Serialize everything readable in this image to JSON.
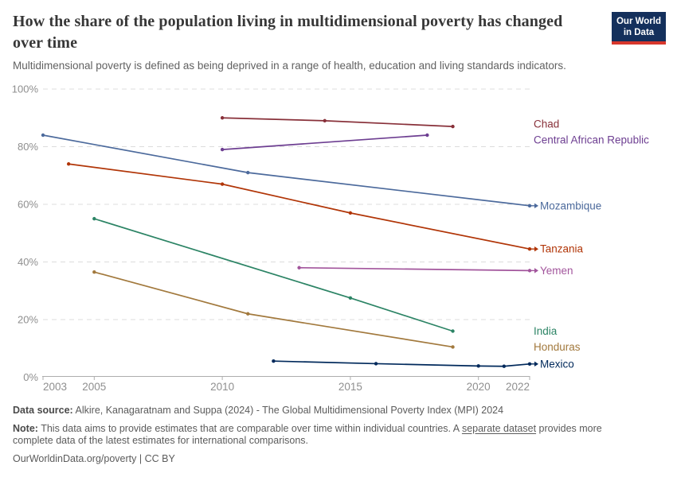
{
  "header": {
    "title": "How the share of the population living in multidimensional poverty has changed over time",
    "subtitle": "Multidimensional poverty is defined as being deprived in a range of health, education and living standards indicators.",
    "logo": {
      "line1": "Our World",
      "line2": "in Data"
    }
  },
  "chart_data": {
    "type": "line",
    "title": "How the share of the population living in multidimensional poverty has changed over time",
    "xlabel": "",
    "ylabel": "",
    "x_range": [
      2003,
      2022
    ],
    "y_range": [
      0,
      100
    ],
    "x_ticks": [
      2003,
      2005,
      2010,
      2015,
      2020,
      2022
    ],
    "y_ticks": [
      0,
      20,
      40,
      60,
      80,
      100
    ],
    "y_tick_suffix": "%",
    "grid": true,
    "legend_position": "right-of-line-ends",
    "series": [
      {
        "name": "Chad",
        "color": "#883039",
        "arrow": false,
        "label_dy": -3,
        "points": [
          [
            2010,
            90
          ],
          [
            2014,
            89
          ],
          [
            2019,
            87
          ]
        ]
      },
      {
        "name": "Central African Republic",
        "color": "#6D3E91",
        "arrow": false,
        "label_dy": 6,
        "points": [
          [
            2010,
            79
          ],
          [
            2018,
            84
          ]
        ]
      },
      {
        "name": "Mozambique",
        "color": "#4C6A9C",
        "arrow": true,
        "label_dy": 0,
        "points": [
          [
            2003,
            84
          ],
          [
            2011,
            71
          ],
          [
            2022,
            59.5
          ]
        ]
      },
      {
        "name": "Tanzania",
        "color": "#B13507",
        "arrow": true,
        "label_dy": 0,
        "points": [
          [
            2004,
            74
          ],
          [
            2010,
            67
          ],
          [
            2015,
            57
          ],
          [
            2022,
            44.5
          ]
        ]
      },
      {
        "name": "Yemen",
        "color": "#A2559C",
        "arrow": true,
        "label_dy": 0,
        "points": [
          [
            2013,
            38
          ],
          [
            2022,
            37
          ]
        ]
      },
      {
        "name": "India",
        "color": "#2C8465",
        "arrow": false,
        "label_dy": 0,
        "points": [
          [
            2005,
            55
          ],
          [
            2015,
            27.5
          ],
          [
            2019,
            16
          ]
        ]
      },
      {
        "name": "Honduras",
        "color": "#A2793D",
        "arrow": false,
        "label_dy": 0,
        "points": [
          [
            2005,
            36.5
          ],
          [
            2011,
            22
          ],
          [
            2019,
            10.5
          ]
        ]
      },
      {
        "name": "Mexico",
        "color": "#00295B",
        "arrow": true,
        "label_dy": 0,
        "points": [
          [
            2012,
            5.6
          ],
          [
            2016,
            4.7
          ],
          [
            2020,
            3.9
          ],
          [
            2021,
            3.8
          ],
          [
            2022,
            4.6
          ]
        ]
      }
    ]
  },
  "footer": {
    "datasource_label": "Data source:",
    "datasource_text": " Alkire, Kanagaratnam and Suppa (2024) - The Global Multidimensional Poverty Index (MPI) 2024",
    "note_label": "Note:",
    "note_pre": " This data aims to provide estimates that are comparable over time within individual countries. A ",
    "note_link": "separate dataset",
    "note_post": " provides more complete data of the latest estimates for international comparisons.",
    "license": "OurWorldinData.org/poverty | CC BY"
  }
}
